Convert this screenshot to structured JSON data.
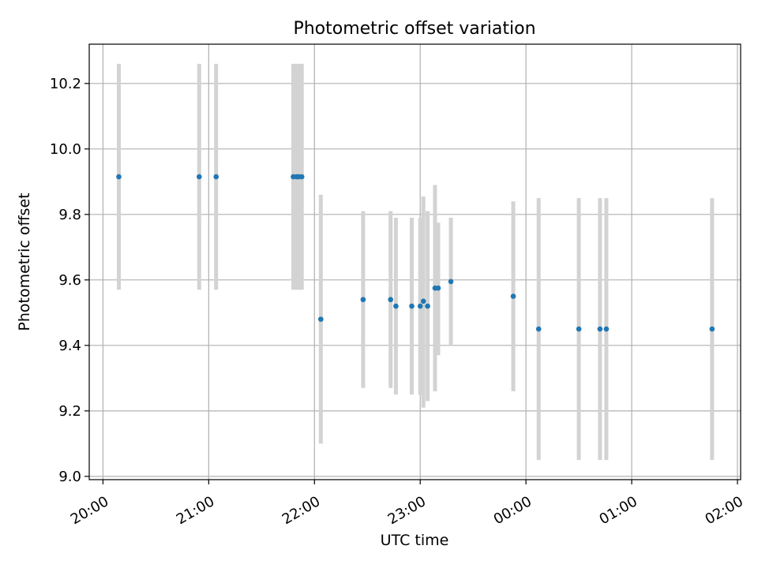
{
  "chart_data": {
    "type": "scatter",
    "title": "Photometric offset variation",
    "xlabel": "UTC time",
    "ylabel": "Photometric offset",
    "x_tick_labels": [
      "20:00",
      "21:00",
      "22:00",
      "23:00",
      "00:00",
      "01:00",
      "02:00"
    ],
    "y_tick_labels": [
      "9.0",
      "9.2",
      "9.4",
      "9.6",
      "9.8",
      "10.0",
      "10.2"
    ],
    "xlim_hours": [
      19.87,
      26.03
    ],
    "ylim": [
      8.99,
      10.32
    ],
    "grid": true,
    "colors": {
      "points": "#1f77b4",
      "errorbars": "#d3d3d3",
      "grid": "#b0b0b0"
    },
    "points": [
      {
        "time": "20:09",
        "t": 20.15,
        "y": 9.915,
        "lo": 9.57,
        "hi": 10.26
      },
      {
        "time": "20:55",
        "t": 20.91,
        "y": 9.915,
        "lo": 9.57,
        "hi": 10.26
      },
      {
        "time": "21:04",
        "t": 21.07,
        "y": 9.915,
        "lo": 9.57,
        "hi": 10.26
      },
      {
        "time": "21:48",
        "t": 21.8,
        "y": 9.915,
        "lo": 9.57,
        "hi": 10.26
      },
      {
        "time": "21:50",
        "t": 21.83,
        "y": 9.915,
        "lo": 9.57,
        "hi": 10.26
      },
      {
        "time": "21:51",
        "t": 21.85,
        "y": 9.915,
        "lo": 9.57,
        "hi": 10.26
      },
      {
        "time": "21:53",
        "t": 21.88,
        "y": 9.915,
        "lo": 9.57,
        "hi": 10.26
      },
      {
        "time": "22:04",
        "t": 22.06,
        "y": 9.48,
        "lo": 9.1,
        "hi": 9.86
      },
      {
        "time": "22:28",
        "t": 22.46,
        "y": 9.54,
        "lo": 9.27,
        "hi": 9.81
      },
      {
        "time": "22:43",
        "t": 22.72,
        "y": 9.54,
        "lo": 9.27,
        "hi": 9.81
      },
      {
        "time": "22:46",
        "t": 22.77,
        "y": 9.52,
        "lo": 9.25,
        "hi": 9.79
      },
      {
        "time": "22:55",
        "t": 22.92,
        "y": 9.52,
        "lo": 9.25,
        "hi": 9.79
      },
      {
        "time": "23:00",
        "t": 23.0,
        "y": 9.52,
        "lo": 9.25,
        "hi": 9.79
      },
      {
        "time": "23:02",
        "t": 23.03,
        "y": 9.535,
        "lo": 9.21,
        "hi": 9.855
      },
      {
        "time": "23:04",
        "t": 23.07,
        "y": 9.52,
        "lo": 9.23,
        "hi": 9.81
      },
      {
        "time": "23:08",
        "t": 23.14,
        "y": 9.575,
        "lo": 9.26,
        "hi": 9.89
      },
      {
        "time": "23:10",
        "t": 23.17,
        "y": 9.575,
        "lo": 9.37,
        "hi": 9.775
      },
      {
        "time": "23:17",
        "t": 23.29,
        "y": 9.595,
        "lo": 9.4,
        "hi": 9.79
      },
      {
        "time": "23:53",
        "t": 23.88,
        "y": 9.55,
        "lo": 9.26,
        "hi": 9.84
      },
      {
        "time": "00:07",
        "t": 24.12,
        "y": 9.45,
        "lo": 9.05,
        "hi": 9.85
      },
      {
        "time": "00:30",
        "t": 24.5,
        "y": 9.45,
        "lo": 9.05,
        "hi": 9.85
      },
      {
        "time": "00:42",
        "t": 24.7,
        "y": 9.45,
        "lo": 9.05,
        "hi": 9.85
      },
      {
        "time": "00:46",
        "t": 24.76,
        "y": 9.45,
        "lo": 9.05,
        "hi": 9.85
      },
      {
        "time": "01:45",
        "t": 25.76,
        "y": 9.45,
        "lo": 9.05,
        "hi": 9.85
      }
    ]
  }
}
